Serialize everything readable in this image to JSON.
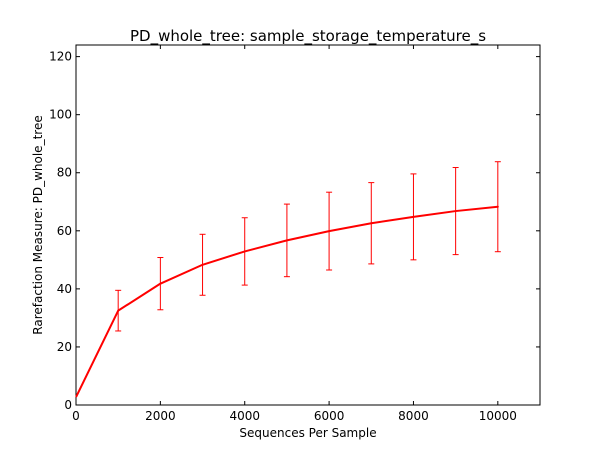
{
  "chart_data": {
    "type": "line",
    "title": "PD_whole_tree: sample_storage_temperature_s",
    "xlabel": "Sequences Per Sample",
    "ylabel": "Rarefaction Measure: PD_whole_tree",
    "xlim": [
      0,
      11000
    ],
    "ylim": [
      0,
      124
    ],
    "x_ticks": [
      0,
      2000,
      4000,
      6000,
      8000,
      10000
    ],
    "y_ticks": [
      0,
      20,
      40,
      60,
      80,
      100,
      120
    ],
    "grid": false,
    "legend": "none",
    "line_color": "#ff0000",
    "series": [
      {
        "x": [
          10,
          1000,
          2000,
          3000,
          4000,
          5000,
          6000,
          7000,
          8000,
          9000,
          10000
        ],
        "y": [
          3,
          32.5,
          41.8,
          48.3,
          52.9,
          56.7,
          59.9,
          62.6,
          64.8,
          66.8,
          68.3
        ],
        "err_low": [
          3,
          25.5,
          32.8,
          37.8,
          41.3,
          44.2,
          46.5,
          48.6,
          50.0,
          51.8,
          52.8
        ],
        "err_high": [
          3,
          39.5,
          50.8,
          58.8,
          64.5,
          69.2,
          73.3,
          76.6,
          79.6,
          81.8,
          83.8
        ]
      }
    ]
  }
}
